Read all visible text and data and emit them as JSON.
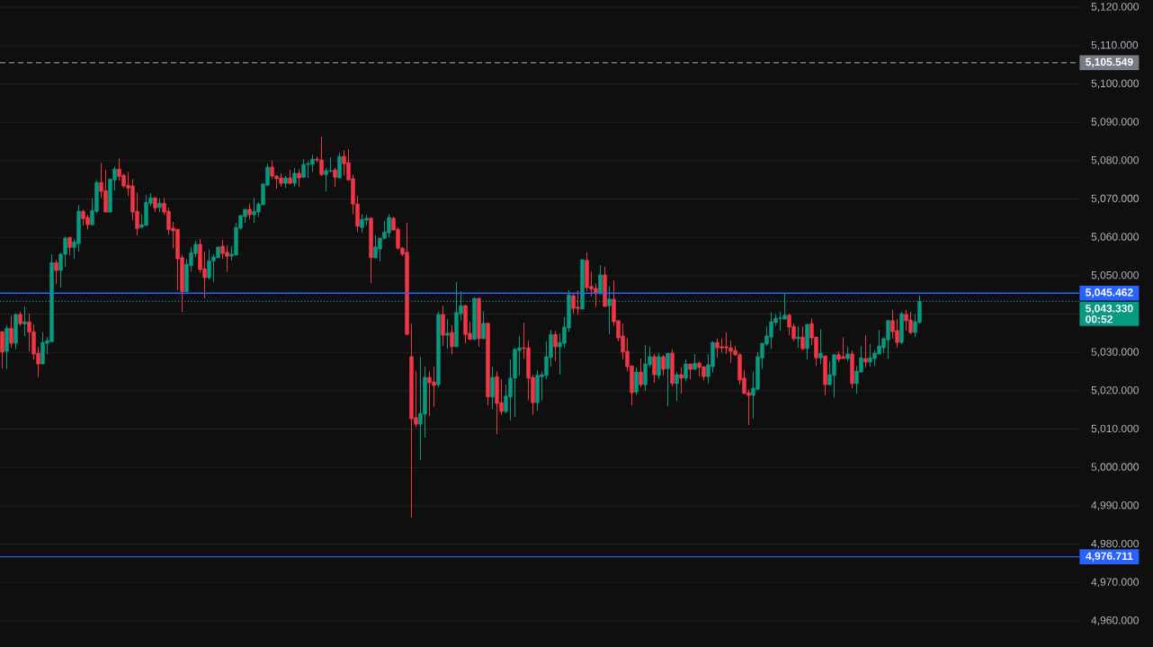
{
  "chart_data": {
    "type": "candlestick",
    "categories": [
      null,
      null,
      null,
      null,
      null,
      null,
      null,
      null,
      null,
      null,
      null,
      null,
      null,
      null,
      null,
      null,
      null,
      null,
      null,
      null,
      null,
      null,
      null,
      null,
      null,
      null,
      null,
      null,
      null,
      null,
      null,
      null,
      null,
      null,
      null,
      null,
      null,
      null,
      null,
      null,
      null,
      null,
      null,
      null,
      null,
      null,
      null,
      null,
      null,
      null,
      null,
      null,
      null,
      null,
      null,
      null,
      null,
      null,
      null,
      null,
      null,
      null,
      null,
      null,
      null,
      null,
      null,
      null,
      null,
      null,
      null,
      null,
      null,
      null,
      null,
      null,
      null,
      null,
      null,
      null,
      null,
      null,
      null,
      null,
      null,
      null,
      null,
      null,
      null,
      null,
      null,
      null,
      null,
      null,
      null,
      null,
      null,
      null,
      null,
      null,
      null,
      null,
      null,
      null,
      null,
      null,
      null,
      null,
      null,
      null,
      null,
      null,
      null,
      null,
      null,
      null,
      null,
      null,
      null,
      null,
      null,
      null,
      null,
      null,
      null,
      null,
      null,
      null,
      null,
      null,
      null,
      null,
      null,
      null,
      null,
      null,
      null,
      null,
      null,
      null,
      null,
      null,
      null,
      null,
      null,
      null,
      null,
      null,
      null,
      null,
      null,
      null,
      null,
      null,
      null,
      null,
      null,
      null,
      null,
      null,
      null,
      null,
      null,
      null,
      null,
      null,
      null,
      null,
      null,
      null,
      null,
      null,
      null,
      null,
      null,
      null,
      null,
      null,
      null,
      null,
      null,
      null,
      null,
      null,
      null,
      null,
      null,
      null,
      null,
      null,
      null,
      null,
      null,
      null,
      null,
      null,
      null,
      null,
      null,
      null,
      null,
      null,
      null,
      null,
      null,
      null,
      null,
      null,
      null,
      null,
      null,
      null,
      null,
      null,
      null,
      null,
      null,
      null,
      null,
      null,
      null,
      null,
      null,
      null,
      null,
      null,
      null,
      null,
      null,
      null,
      null,
      null,
      null,
      null,
      null,
      null,
      null,
      null,
      null,
      null
    ],
    "ohlc": [
      [
        5035.4,
        5035.6,
        5025.8,
        5030.1
      ],
      [
        5030.3,
        5037.0,
        5025.7,
        5036.3
      ],
      [
        5036.3,
        5039.6,
        5031.3,
        5032.4
      ],
      [
        5032.4,
        5040.1,
        5030.8,
        5039.9
      ],
      [
        5039.9,
        5040.6,
        5036.9,
        5037.5
      ],
      [
        5037.4,
        5042.0,
        5034.3,
        5038.0
      ],
      [
        5038.0,
        5040.1,
        5030.3,
        5035.3
      ],
      [
        5035.4,
        5037.3,
        5028.2,
        5029.6
      ],
      [
        5029.8,
        5031.4,
        5023.6,
        5027.0
      ],
      [
        5027.0,
        5035.2,
        5027.0,
        5032.6
      ],
      [
        5032.4,
        5034.0,
        5029.6,
        5033.1
      ],
      [
        5032.8,
        5055.6,
        5032.8,
        5053.4
      ],
      [
        5053.4,
        5054.1,
        5047.8,
        5051.4
      ],
      [
        5051.4,
        5056.0,
        5046.9,
        5055.6
      ],
      [
        5055.6,
        5060.2,
        5052.3,
        5059.8
      ],
      [
        5060.0,
        5060.0,
        5055.3,
        5057.4
      ],
      [
        5057.4,
        5059.5,
        5054.4,
        5058.8
      ],
      [
        5058.4,
        5068.4,
        5056.3,
        5066.8
      ],
      [
        5066.8,
        5067.3,
        5063.1,
        5064.9
      ],
      [
        5065.2,
        5065.9,
        5062.1,
        5063.3
      ],
      [
        5063.3,
        5070.1,
        5063.3,
        5067.0
      ],
      [
        5066.8,
        5074.8,
        5066.3,
        5074.3
      ],
      [
        5074.3,
        5079.4,
        5070.3,
        5072.0
      ],
      [
        5072.2,
        5077.6,
        5066.6,
        5066.6
      ],
      [
        5066.6,
        5075.2,
        5066.6,
        5075.2
      ],
      [
        5075.0,
        5078.5,
        5072.2,
        5077.8
      ],
      [
        5077.8,
        5080.6,
        5074.8,
        5075.9
      ],
      [
        5076.2,
        5076.6,
        5072.9,
        5073.4
      ],
      [
        5073.6,
        5077.1,
        5070.8,
        5072.9
      ],
      [
        5073.4,
        5075.2,
        5064.5,
        5066.6
      ],
      [
        5066.8,
        5071.7,
        5060.5,
        5062.3
      ],
      [
        5062.6,
        5066.1,
        5062.6,
        5063.3
      ],
      [
        5063.1,
        5071.0,
        5063.1,
        5069.1
      ],
      [
        5068.9,
        5071.5,
        5068.2,
        5070.3
      ],
      [
        5070.3,
        5070.5,
        5066.6,
        5067.7
      ],
      [
        5067.8,
        5070.1,
        5066.6,
        5068.9
      ],
      [
        5068.9,
        5070.3,
        5065.9,
        5066.6
      ],
      [
        5066.8,
        5067.8,
        5060.7,
        5062.1
      ],
      [
        5062.4,
        5064.0,
        5057.2,
        5061.7
      ],
      [
        5062.1,
        5062.1,
        5046.2,
        5054.4
      ],
      [
        5054.7,
        5055.4,
        5040.6,
        5045.8
      ],
      [
        5045.8,
        5054.4,
        5045.8,
        5053.0
      ],
      [
        5052.7,
        5057.5,
        5051.1,
        5056.0
      ],
      [
        5055.8,
        5059.1,
        5054.9,
        5058.2
      ],
      [
        5058.2,
        5059.6,
        5050.9,
        5051.6
      ],
      [
        5051.8,
        5056.3,
        5044.1,
        5049.5
      ],
      [
        5049.5,
        5056.8,
        5049.0,
        5053.9
      ],
      [
        5053.9,
        5055.6,
        5048.3,
        5054.9
      ],
      [
        5054.7,
        5057.5,
        5054.7,
        5057.5
      ],
      [
        5057.7,
        5059.3,
        5054.4,
        5055.8
      ],
      [
        5056.1,
        5057.9,
        5051.1,
        5055.1
      ],
      [
        5055.1,
        5057.7,
        5054.0,
        5055.6
      ],
      [
        5055.4,
        5063.8,
        5055.4,
        5062.6
      ],
      [
        5062.4,
        5065.7,
        5062.1,
        5065.7
      ],
      [
        5065.4,
        5067.3,
        5063.8,
        5067.3
      ],
      [
        5067.3,
        5068.9,
        5064.7,
        5065.9
      ],
      [
        5065.9,
        5070.3,
        5063.8,
        5066.8
      ],
      [
        5066.6,
        5069.2,
        5065.4,
        5068.7
      ],
      [
        5068.5,
        5074.1,
        5068.5,
        5073.9
      ],
      [
        5073.6,
        5079.2,
        5073.6,
        5078.3
      ],
      [
        5078.3,
        5080.0,
        5075.3,
        5076.0
      ],
      [
        5076.0,
        5076.2,
        5072.7,
        5075.3
      ],
      [
        5075.5,
        5076.7,
        5073.2,
        5074.1
      ],
      [
        5074.1,
        5076.0,
        5072.9,
        5075.5
      ],
      [
        5075.5,
        5077.6,
        5073.9,
        5074.1
      ],
      [
        5074.1,
        5078.1,
        5073.2,
        5076.7
      ],
      [
        5076.7,
        5077.8,
        5073.2,
        5075.5
      ],
      [
        5075.7,
        5080.4,
        5075.5,
        5079.0
      ],
      [
        5079.0,
        5079.7,
        5075.5,
        5079.2
      ],
      [
        5079.1,
        5081.6,
        5077.1,
        5080.4
      ],
      [
        5080.4,
        5081.1,
        5079.5,
        5080.2
      ],
      [
        5080.2,
        5086.3,
        5076.0,
        5076.4
      ],
      [
        5076.4,
        5078.1,
        5072.0,
        5077.4
      ],
      [
        5077.3,
        5080.9,
        5076.9,
        5077.4
      ],
      [
        5077.6,
        5078.1,
        5073.2,
        5075.7
      ],
      [
        5075.5,
        5082.1,
        5075.5,
        5081.1
      ],
      [
        5081.1,
        5082.8,
        5076.2,
        5079.2
      ],
      [
        5079.5,
        5083.0,
        5074.8,
        5075.0
      ],
      [
        5075.3,
        5076.4,
        5066.1,
        5068.7
      ],
      [
        5068.7,
        5070.8,
        5061.4,
        5062.9
      ],
      [
        5062.6,
        5066.1,
        5061.2,
        5064.7
      ],
      [
        5064.5,
        5065.9,
        5063.1,
        5065.0
      ],
      [
        5065.0,
        5065.2,
        5048.1,
        5054.7
      ],
      [
        5054.7,
        5060.5,
        5054.4,
        5057.5
      ],
      [
        5057.0,
        5059.8,
        5053.7,
        5059.8
      ],
      [
        5059.8,
        5064.3,
        5059.6,
        5061.4
      ],
      [
        5061.2,
        5066.1,
        5060.0,
        5065.2
      ],
      [
        5065.0,
        5065.4,
        5061.9,
        5061.9
      ],
      [
        5062.1,
        5062.6,
        5056.8,
        5057.2
      ],
      [
        5057.2,
        5057.5,
        5055.1,
        5055.6
      ],
      [
        5056.1,
        5063.8,
        5034.7,
        5034.7
      ],
      [
        5028.9,
        5037.5,
        4987.0,
        5012.7
      ],
      [
        5013.0,
        5025.1,
        5010.4,
        5011.3
      ],
      [
        5011.3,
        5028.9,
        5002.0,
        5014.1
      ],
      [
        5013.9,
        5026.3,
        5007.8,
        5023.5
      ],
      [
        5023.5,
        5025.1,
        5013.4,
        5022.1
      ],
      [
        5022.3,
        5026.3,
        5015.8,
        5021.4
      ],
      [
        5021.6,
        5040.6,
        5020.9,
        5039.9
      ],
      [
        5039.9,
        5042.2,
        5031.7,
        5034.5
      ],
      [
        5034.5,
        5038.7,
        5031.0,
        5035.0
      ],
      [
        5035.2,
        5037.1,
        5029.6,
        5031.5
      ],
      [
        5031.5,
        5048.3,
        5031.5,
        5040.4
      ],
      [
        5040.1,
        5046.0,
        5038.3,
        5042.2
      ],
      [
        5042.2,
        5042.5,
        5032.4,
        5034.7
      ],
      [
        5035.0,
        5038.0,
        5033.4,
        5033.4
      ],
      [
        5033.4,
        5044.3,
        5033.4,
        5044.1
      ],
      [
        5044.1,
        5044.3,
        5031.5,
        5033.6
      ],
      [
        5033.6,
        5040.8,
        5033.6,
        5037.6
      ],
      [
        5037.6,
        5037.8,
        5016.2,
        5018.4
      ],
      [
        5018.4,
        5026.3,
        5015.3,
        5023.5
      ],
      [
        5023.7,
        5025.1,
        5008.7,
        5016.7
      ],
      [
        5016.9,
        5023.0,
        5013.7,
        5014.6
      ],
      [
        5014.6,
        5021.6,
        5014.1,
        5018.6
      ],
      [
        5018.4,
        5028.2,
        5012.3,
        5023.3
      ],
      [
        5023.3,
        5031.2,
        5013.2,
        5030.8
      ],
      [
        5030.5,
        5034.3,
        5024.0,
        5031.2
      ],
      [
        5031.2,
        5037.8,
        5028.4,
        5031.0
      ],
      [
        5031.2,
        5033.1,
        5017.6,
        5023.3
      ],
      [
        5023.5,
        5024.2,
        5013.7,
        5016.9
      ],
      [
        5016.9,
        5025.4,
        5014.8,
        5024.0
      ],
      [
        5023.7,
        5025.1,
        5017.6,
        5024.2
      ],
      [
        5024.0,
        5032.9,
        5023.0,
        5028.9
      ],
      [
        5028.7,
        5035.9,
        5026.3,
        5034.7
      ],
      [
        5034.7,
        5035.5,
        5027.7,
        5031.5
      ],
      [
        5031.5,
        5035.0,
        5024.2,
        5032.6
      ],
      [
        5032.4,
        5039.2,
        5031.2,
        5036.6
      ],
      [
        5036.4,
        5046.2,
        5035.4,
        5045.0
      ],
      [
        5044.8,
        5045.3,
        5040.1,
        5041.5
      ],
      [
        5041.8,
        5046.2,
        5039.9,
        5041.5
      ],
      [
        5041.3,
        5054.2,
        5041.3,
        5054.2
      ],
      [
        5054.0,
        5056.1,
        5046.0,
        5046.9
      ],
      [
        5047.2,
        5051.1,
        5044.6,
        5046.5
      ],
      [
        5046.7,
        5047.9,
        5041.8,
        5045.3
      ],
      [
        5045.3,
        5052.8,
        5045.3,
        5050.2
      ],
      [
        5050.2,
        5052.3,
        5042.0,
        5042.0
      ],
      [
        5042.2,
        5047.2,
        5034.7,
        5043.9
      ],
      [
        5043.9,
        5048.8,
        5036.9,
        5038.0
      ],
      [
        5038.3,
        5038.3,
        5032.9,
        5033.8
      ],
      [
        5034.3,
        5037.5,
        5028.2,
        5030.1
      ],
      [
        5030.3,
        5033.8,
        5025.1,
        5026.3
      ],
      [
        5026.5,
        5026.5,
        5016.2,
        5019.5
      ],
      [
        5019.7,
        5026.1,
        5019.0,
        5024.9
      ],
      [
        5024.9,
        5028.4,
        5020.9,
        5021.6
      ],
      [
        5021.6,
        5031.9,
        5020.0,
        5027.0
      ],
      [
        5026.8,
        5031.5,
        5026.1,
        5028.9
      ],
      [
        5028.9,
        5029.6,
        5022.1,
        5024.2
      ],
      [
        5024.0,
        5029.8,
        5023.0,
        5028.9
      ],
      [
        5028.9,
        5029.4,
        5024.0,
        5025.6
      ],
      [
        5025.8,
        5029.8,
        5016.0,
        5029.8
      ],
      [
        5029.8,
        5030.8,
        5021.2,
        5021.9
      ],
      [
        5021.9,
        5024.9,
        5017.4,
        5024.2
      ],
      [
        5024.2,
        5026.1,
        5019.3,
        5023.3
      ],
      [
        5023.3,
        5028.2,
        5022.6,
        5027.0
      ],
      [
        5027.0,
        5027.0,
        5023.0,
        5025.6
      ],
      [
        5025.6,
        5029.6,
        5025.6,
        5027.2
      ],
      [
        5027.2,
        5027.7,
        5023.7,
        5026.1
      ],
      [
        5026.3,
        5026.3,
        5022.8,
        5023.7
      ],
      [
        5023.7,
        5029.6,
        5021.9,
        5026.8
      ],
      [
        5026.3,
        5032.9,
        5024.7,
        5032.6
      ],
      [
        5032.6,
        5033.6,
        5028.6,
        5031.2
      ],
      [
        5031.5,
        5033.6,
        5030.0,
        5031.2
      ],
      [
        5031.5,
        5035.2,
        5029.6,
        5031.2
      ],
      [
        5031.2,
        5033.1,
        5027.3,
        5030.3
      ],
      [
        5030.5,
        5031.7,
        5029.1,
        5029.4
      ],
      [
        5029.4,
        5029.8,
        5021.6,
        5022.8
      ],
      [
        5023.3,
        5025.4,
        5019.3,
        5019.3
      ],
      [
        5019.5,
        5020.4,
        5011.1,
        5018.8
      ],
      [
        5018.8,
        5025.1,
        5012.7,
        5020.7
      ],
      [
        5020.4,
        5030.1,
        5020.2,
        5028.9
      ],
      [
        5028.6,
        5032.4,
        5025.8,
        5032.4
      ],
      [
        5032.2,
        5036.8,
        5031.7,
        5034.3
      ],
      [
        5034.0,
        5040.4,
        5031.0,
        5038.0
      ],
      [
        5037.8,
        5040.0,
        5037.0,
        5038.9
      ],
      [
        5038.9,
        5040.6,
        5035.7,
        5039.0
      ],
      [
        5038.7,
        5045.5,
        5038.7,
        5039.7
      ],
      [
        5039.7,
        5040.1,
        5034.5,
        5036.6
      ],
      [
        5036.8,
        5037.5,
        5032.9,
        5033.6
      ],
      [
        5033.6,
        5036.8,
        5031.2,
        5034.0
      ],
      [
        5034.0,
        5036.8,
        5030.5,
        5031.0
      ],
      [
        5031.0,
        5037.5,
        5028.2,
        5037.3
      ],
      [
        5037.5,
        5038.9,
        5031.9,
        5033.8
      ],
      [
        5034.0,
        5034.0,
        5026.5,
        5028.6
      ],
      [
        5028.6,
        5036.1,
        5027.0,
        5029.8
      ],
      [
        5029.1,
        5029.1,
        5018.8,
        5021.6
      ],
      [
        5021.6,
        5027.7,
        5021.4,
        5024.2
      ],
      [
        5024.0,
        5029.4,
        5018.3,
        5029.4
      ],
      [
        5029.4,
        5030.3,
        5027.5,
        5028.2
      ],
      [
        5028.9,
        5034.0,
        5028.4,
        5028.4
      ],
      [
        5028.4,
        5031.5,
        5027.7,
        5029.6
      ],
      [
        5029.6,
        5030.5,
        5020.7,
        5021.9
      ],
      [
        5021.9,
        5026.5,
        5019.3,
        5025.1
      ],
      [
        5024.9,
        5031.7,
        5024.9,
        5028.6
      ],
      [
        5028.4,
        5034.5,
        5026.1,
        5027.5
      ],
      [
        5027.5,
        5032.2,
        5026.3,
        5028.6
      ],
      [
        5028.4,
        5030.5,
        5026.5,
        5029.8
      ],
      [
        5029.6,
        5035.9,
        5029.6,
        5031.7
      ],
      [
        5031.2,
        5034.0,
        5029.8,
        5033.6
      ],
      [
        5033.3,
        5038.5,
        5028.4,
        5038.3
      ],
      [
        5038.3,
        5041.1,
        5033.6,
        5035.4
      ],
      [
        5035.7,
        5038.7,
        5031.2,
        5032.6
      ],
      [
        5032.6,
        5040.6,
        5032.2,
        5040.1
      ],
      [
        5039.9,
        5041.1,
        5035.7,
        5038.3
      ],
      [
        5038.5,
        5040.6,
        5034.7,
        5035.2
      ],
      [
        5035.2,
        5039.9,
        5034.0,
        5038.0
      ],
      [
        5037.8,
        5044.8,
        5037.5,
        5043.3
      ],
      null,
      null,
      null,
      null,
      null,
      null,
      null,
      null,
      null,
      null,
      null,
      null,
      null,
      null,
      null,
      null,
      null,
      null,
      null,
      null,
      null,
      null,
      null,
      null,
      null,
      null,
      null,
      null,
      null,
      null,
      null,
      null,
      null,
      null,
      null
    ],
    "colors": [
      "#f23645",
      "#089981",
      "#f23645",
      "#089981",
      "#f23645",
      "#089981",
      "#f23645",
      "#f23645",
      "#f23645",
      "#089981",
      "#089981",
      "#089981",
      "#f23645",
      "#089981",
      "#089981",
      "#f23645",
      "#089981",
      "#089981",
      "#f23645",
      "#f23645",
      "#089981",
      "#089981",
      "#f23645",
      "#f23645",
      "#089981",
      "#089981",
      "#f23645",
      "#f23645",
      "#f23645",
      "#f23645",
      "#f23645",
      "#089981",
      "#089981",
      "#089981",
      "#f23645",
      "#089981",
      "#f23645",
      "#f23645",
      "#f23645",
      "#f23645",
      "#f23645",
      "#089981",
      "#089981",
      "#089981",
      "#f23645",
      "#f23645",
      "#089981",
      "#089981",
      "#089981",
      "#f23645",
      "#f23645",
      "#089981",
      "#089981",
      "#089981",
      "#089981",
      "#f23645",
      "#089981",
      "#089981",
      "#089981",
      "#089981",
      "#f23645",
      "#f23645",
      "#f23645",
      "#089981",
      "#f23645",
      "#089981",
      "#f23645",
      "#089981",
      "#089981",
      "#089981",
      "#f23645",
      "#f23645",
      "#089981",
      "#089981",
      "#f23645",
      "#089981",
      "#f23645",
      "#f23645",
      "#f23645",
      "#f23645",
      "#089981",
      "#089981",
      "#f23645",
      "#089981",
      "#089981",
      "#089981",
      "#089981",
      "#f23645",
      "#f23645",
      "#f23645",
      "#f23645",
      "#f23645",
      "#f23645",
      "#089981",
      "#089981",
      "#f23645",
      "#f23645",
      "#089981",
      "#f23645",
      "#089981",
      "#f23645",
      "#089981",
      "#089981",
      "#f23645",
      "#f23645",
      "#089981",
      "#f23645",
      "#089981",
      "#f23645",
      "#089981",
      "#f23645",
      "#f23645",
      "#089981",
      "#089981",
      "#089981",
      "#089981",
      "#f23645",
      "#f23645",
      "#f23645",
      "#089981",
      "#089981",
      "#089981",
      "#089981",
      "#f23645",
      "#089981",
      "#089981",
      "#089981",
      "#f23645",
      "#f23645",
      "#089981",
      "#f23645",
      "#f23645",
      "#f23645",
      "#089981",
      "#f23645",
      "#089981",
      "#f23645",
      "#f23645",
      "#f23645",
      "#f23645",
      "#f23645",
      "#089981",
      "#f23645",
      "#089981",
      "#089981",
      "#f23645",
      "#089981",
      "#f23645",
      "#089981",
      "#f23645",
      "#089981",
      "#f23645",
      "#089981",
      "#f23645",
      "#089981",
      "#f23645",
      "#f23645",
      "#089981",
      "#089981",
      "#f23645",
      "#f23645",
      "#f23645",
      "#f23645",
      "#f23645",
      "#f23645",
      "#f23645",
      "#f23645",
      "#089981",
      "#089981",
      "#089981",
      "#089981",
      "#089981",
      "#089981",
      "#089981",
      "#089981",
      "#f23645",
      "#f23645",
      "#089981",
      "#f23645",
      "#089981",
      "#f23645",
      "#f23645",
      "#089981",
      "#f23645",
      "#089981",
      "#089981",
      "#f23645",
      "#f23645",
      "#089981",
      "#f23645",
      "#089981",
      "#089981",
      "#f23645",
      "#089981",
      "#089981",
      "#089981",
      "#089981",
      "#089981",
      "#f23645",
      "#f23645",
      "#089981",
      "#f23645",
      "#f23645",
      "#089981",
      "#089981",
      null,
      null,
      null,
      null,
      null,
      null,
      null,
      null,
      null,
      null,
      null,
      null,
      null,
      null,
      null,
      null,
      null,
      null,
      null,
      null,
      null,
      null,
      null,
      null,
      null,
      null,
      null,
      null,
      null,
      null,
      null,
      null,
      null,
      null,
      null
    ],
    "ylim": [
      4953.2,
      5121.9
    ],
    "yticks": [
      {
        "value": 4960,
        "label": "4,960.000"
      },
      {
        "value": 4970,
        "label": "4,970.000"
      },
      {
        "value": 4980,
        "label": "4,980.000"
      },
      {
        "value": 4990,
        "label": "4,990.000"
      },
      {
        "value": 5000,
        "label": "5,000.000"
      },
      {
        "value": 5010,
        "label": "5,010.000"
      },
      {
        "value": 5020,
        "label": "5,020.000"
      },
      {
        "value": 5030,
        "label": "5,030.000"
      },
      {
        "value": 5040,
        "label": null
      },
      {
        "value": 5050,
        "label": "5,050.000"
      },
      {
        "value": 5060,
        "label": "5,060.000"
      },
      {
        "value": 5070,
        "label": "5,070.000"
      },
      {
        "value": 5080,
        "label": "5,080.000"
      },
      {
        "value": 5090,
        "label": "5,090.000"
      },
      {
        "value": 5100,
        "label": "5,100.000"
      },
      {
        "value": 5110,
        "label": "5,110.000"
      },
      {
        "value": 5120,
        "label": "5,120.000"
      }
    ],
    "grid": "y",
    "tick_labels": "y",
    "ref_lines": [
      {
        "axis": "y",
        "value": 5105.549,
        "label": "5,105.549",
        "color": "#787b86",
        "line_style": "dashed"
      },
      {
        "axis": "y",
        "value": 5045.462,
        "label": "5,045.462",
        "color": "#2962ff"
      },
      {
        "axis": "y",
        "value": 5043.33,
        "label": "5,043.330",
        "color": "#089981",
        "line_style": "dotted"
      },
      {
        "axis": "y",
        "value": 4976.711,
        "label": "4,976.711",
        "color": "#2962ff"
      }
    ],
    "annotations": [
      "00:52"
    ]
  }
}
